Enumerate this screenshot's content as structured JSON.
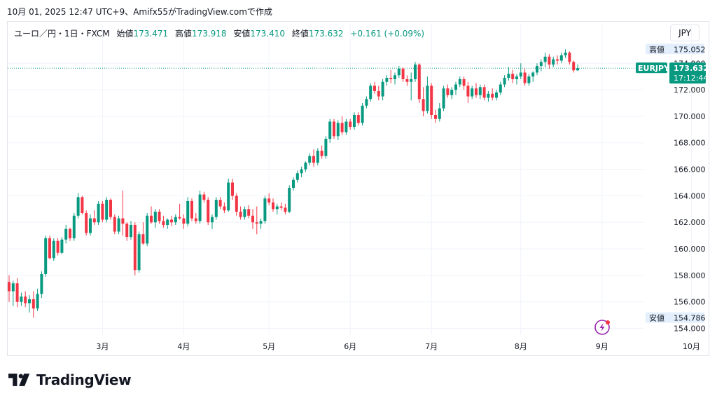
{
  "caption": "10月 01, 2025 12:47 UTC+9、Amifx55がTradingView.comで作成",
  "legend": {
    "symbol": "ユーロ／円・1日・FXCM",
    "open_label": "始値",
    "open_value": "173.471",
    "high_label": "高値",
    "high_value": "173.918",
    "low_label": "安値",
    "low_value": "173.410",
    "close_label": "終値",
    "close_value": "173.632",
    "change": "+0.161 (+0.09%)"
  },
  "currency_button": "JPY",
  "logo_text": "TradingView",
  "price_axis": {
    "ticks": [
      "174.000",
      "172.000",
      "170.000",
      "168.000",
      "166.000",
      "164.000",
      "162.000",
      "160.000",
      "158.000",
      "156.000",
      "154.000"
    ],
    "high_tag_label": "高値",
    "high_tag_value": "175.052",
    "low_tag_label": "安値",
    "low_tag_value": "154.786",
    "symbol_tag": "EURJPY",
    "last_price": "173.632",
    "countdown": "17:12:44"
  },
  "time_axis": {
    "ticks": [
      "3月",
      "4月",
      "5月",
      "6月",
      "7月",
      "8月",
      "9月",
      "10月"
    ]
  },
  "colors": {
    "up": "#089981",
    "down": "#f23645",
    "last_price_line": "#089981",
    "high_low_tag_bg": "#e3effd"
  },
  "chart_data": {
    "type": "candlestick",
    "symbol": "EURJPY",
    "timeframe": "1D",
    "ylim": [
      153.5,
      175.6
    ],
    "y_ticks": [
      154,
      156,
      158,
      160,
      162,
      164,
      166,
      168,
      170,
      172,
      174
    ],
    "x_ticks": [
      "3月",
      "4月",
      "5月",
      "6月",
      "7月",
      "8月",
      "9月",
      "10月"
    ],
    "x_tick_index": [
      23,
      43,
      64,
      84,
      104,
      126,
      146,
      168
    ],
    "high_marker": 175.052,
    "low_marker": 154.786,
    "last_price": 173.632,
    "grid": true,
    "candles": [
      [
        157.5,
        158.0,
        156.0,
        156.8
      ],
      [
        156.8,
        157.6,
        155.7,
        157.4
      ],
      [
        157.4,
        157.8,
        155.6,
        156.0
      ],
      [
        156.0,
        156.7,
        155.7,
        156.4
      ],
      [
        156.4,
        156.8,
        155.6,
        155.9
      ],
      [
        155.9,
        156.5,
        155.2,
        156.2
      ],
      [
        156.2,
        156.8,
        154.8,
        155.5
      ],
      [
        155.5,
        157.0,
        155.3,
        156.6
      ],
      [
        156.6,
        158.3,
        156.3,
        158.1
      ],
      [
        158.1,
        161.0,
        157.9,
        160.8
      ],
      [
        160.8,
        161.0,
        159.2,
        159.3
      ],
      [
        159.3,
        160.8,
        159.1,
        160.6
      ],
      [
        160.6,
        160.8,
        159.5,
        159.7
      ],
      [
        159.7,
        160.9,
        159.6,
        160.7
      ],
      [
        160.7,
        161.8,
        160.4,
        161.5
      ],
      [
        161.5,
        161.6,
        160.6,
        160.8
      ],
      [
        160.8,
        162.7,
        160.6,
        162.5
      ],
      [
        162.5,
        164.2,
        162.3,
        163.9
      ],
      [
        163.9,
        164.0,
        162.6,
        162.7
      ],
      [
        162.7,
        162.9,
        161.0,
        161.2
      ],
      [
        161.2,
        162.6,
        161.0,
        162.3
      ],
      [
        162.3,
        162.9,
        161.8,
        162.0
      ],
      [
        162.0,
        163.6,
        161.8,
        163.4
      ],
      [
        163.4,
        163.6,
        162.0,
        162.2
      ],
      [
        162.2,
        163.9,
        162.0,
        163.7
      ],
      [
        163.7,
        163.8,
        162.2,
        162.4
      ],
      [
        162.4,
        162.6,
        161.1,
        161.3
      ],
      [
        161.3,
        162.5,
        161.1,
        162.3
      ],
      [
        162.3,
        164.4,
        161.0,
        161.9
      ],
      [
        161.9,
        162.0,
        160.6,
        160.9
      ],
      [
        160.9,
        162.1,
        160.7,
        161.8
      ],
      [
        161.8,
        162.0,
        158.0,
        158.4
      ],
      [
        158.4,
        161.3,
        158.2,
        161.1
      ],
      [
        161.1,
        162.0,
        160.3,
        160.4
      ],
      [
        160.4,
        162.7,
        160.2,
        162.5
      ],
      [
        162.5,
        163.2,
        161.9,
        162.0
      ],
      [
        162.0,
        163.0,
        161.6,
        162.8
      ],
      [
        162.8,
        163.0,
        161.9,
        162.1
      ],
      [
        162.1,
        162.5,
        161.6,
        161.8
      ],
      [
        161.8,
        162.3,
        161.5,
        162.2
      ],
      [
        162.2,
        162.5,
        161.7,
        162.0
      ],
      [
        162.0,
        162.6,
        161.8,
        162.4
      ],
      [
        162.4,
        163.4,
        162.2,
        162.3
      ],
      [
        162.3,
        162.6,
        161.5,
        161.9
      ],
      [
        161.9,
        163.9,
        161.7,
        163.6
      ],
      [
        163.6,
        163.8,
        162.1,
        162.3
      ],
      [
        162.3,
        162.7,
        161.9,
        162.1
      ],
      [
        162.1,
        164.4,
        161.9,
        164.1
      ],
      [
        164.1,
        164.3,
        163.5,
        163.7
      ],
      [
        163.7,
        163.9,
        161.8,
        162.0
      ],
      [
        162.0,
        162.6,
        161.5,
        162.4
      ],
      [
        162.4,
        163.9,
        162.2,
        163.7
      ],
      [
        163.7,
        163.9,
        163.0,
        163.2
      ],
      [
        163.2,
        163.5,
        162.7,
        162.9
      ],
      [
        162.9,
        165.3,
        162.8,
        165.0
      ],
      [
        165.0,
        165.3,
        163.7,
        164.0
      ],
      [
        164.0,
        164.2,
        162.5,
        162.8
      ],
      [
        162.8,
        163.2,
        162.2,
        162.4
      ],
      [
        162.4,
        163.2,
        162.2,
        163.0
      ],
      [
        163.0,
        163.3,
        162.3,
        162.5
      ],
      [
        162.5,
        163.0,
        161.5,
        162.0
      ],
      [
        162.0,
        163.2,
        161.1,
        161.9
      ],
      [
        161.9,
        162.3,
        161.5,
        162.1
      ],
      [
        162.1,
        164.0,
        161.9,
        163.8
      ],
      [
        163.8,
        164.2,
        163.3,
        163.5
      ],
      [
        163.5,
        163.8,
        162.8,
        163.0
      ],
      [
        163.0,
        163.4,
        162.6,
        163.2
      ],
      [
        163.2,
        163.5,
        162.9,
        163.1
      ],
      [
        163.1,
        163.4,
        162.6,
        162.8
      ],
      [
        162.8,
        164.8,
        162.7,
        164.6
      ],
      [
        164.6,
        165.4,
        164.4,
        165.2
      ],
      [
        165.2,
        165.9,
        165.0,
        165.7
      ],
      [
        165.7,
        166.2,
        165.4,
        166.0
      ],
      [
        166.0,
        166.6,
        165.8,
        166.5
      ],
      [
        166.5,
        167.2,
        166.3,
        167.0
      ],
      [
        167.0,
        167.5,
        166.2,
        166.5
      ],
      [
        166.5,
        167.6,
        166.3,
        167.4
      ],
      [
        167.4,
        167.8,
        166.8,
        167.0
      ],
      [
        167.0,
        168.5,
        166.8,
        168.3
      ],
      [
        168.3,
        169.8,
        168.0,
        169.6
      ],
      [
        169.6,
        169.8,
        168.3,
        168.5
      ],
      [
        168.5,
        169.7,
        168.2,
        169.5
      ],
      [
        169.5,
        170.0,
        168.6,
        168.8
      ],
      [
        168.8,
        169.8,
        168.6,
        169.6
      ],
      [
        169.6,
        169.8,
        169.0,
        169.2
      ],
      [
        169.2,
        170.3,
        169.0,
        170.1
      ],
      [
        170.1,
        170.3,
        169.3,
        169.5
      ],
      [
        169.5,
        171.0,
        169.3,
        170.8
      ],
      [
        170.8,
        171.5,
        170.6,
        171.3
      ],
      [
        171.3,
        172.5,
        171.1,
        172.3
      ],
      [
        172.3,
        172.6,
        171.7,
        171.9
      ],
      [
        171.9,
        172.3,
        171.2,
        171.5
      ],
      [
        171.5,
        172.8,
        171.2,
        172.6
      ],
      [
        172.6,
        173.1,
        172.3,
        172.9
      ],
      [
        172.9,
        173.5,
        172.5,
        172.8
      ],
      [
        172.8,
        173.3,
        172.4,
        173.1
      ],
      [
        173.1,
        173.8,
        172.9,
        173.6
      ],
      [
        173.6,
        173.7,
        172.6,
        172.8
      ],
      [
        172.8,
        173.1,
        172.3,
        172.6
      ],
      [
        172.6,
        173.3,
        171.2,
        172.8
      ],
      [
        172.8,
        174.1,
        172.6,
        173.9
      ],
      [
        173.9,
        174.0,
        171.0,
        171.3
      ],
      [
        171.3,
        172.2,
        170.0,
        170.4
      ],
      [
        170.4,
        173.0,
        170.2,
        172.3
      ],
      [
        172.3,
        172.5,
        169.8,
        170.1
      ],
      [
        170.1,
        170.5,
        169.5,
        169.8
      ],
      [
        169.8,
        171.0,
        169.6,
        170.6
      ],
      [
        170.6,
        172.3,
        170.4,
        172.1
      ],
      [
        172.1,
        172.4,
        171.4,
        171.6
      ],
      [
        171.6,
        172.2,
        171.3,
        172.0
      ],
      [
        172.0,
        172.6,
        171.6,
        172.4
      ],
      [
        172.4,
        173.0,
        172.2,
        172.8
      ],
      [
        172.8,
        173.0,
        172.0,
        172.3
      ],
      [
        172.3,
        172.6,
        171.0,
        171.5
      ],
      [
        171.5,
        172.3,
        171.3,
        172.1
      ],
      [
        172.1,
        172.5,
        171.4,
        171.6
      ],
      [
        171.6,
        172.4,
        171.3,
        172.2
      ],
      [
        172.2,
        172.4,
        171.2,
        171.4
      ],
      [
        171.4,
        171.9,
        171.1,
        171.7
      ],
      [
        171.7,
        172.1,
        171.2,
        171.4
      ],
      [
        171.4,
        172.0,
        171.2,
        171.8
      ],
      [
        171.8,
        172.6,
        171.6,
        172.4
      ],
      [
        172.4,
        173.1,
        172.2,
        172.9
      ],
      [
        172.9,
        173.7,
        172.7,
        173.2
      ],
      [
        173.2,
        173.5,
        172.5,
        172.8
      ],
      [
        172.8,
        173.2,
        172.4,
        173.0
      ],
      [
        173.0,
        174.0,
        172.8,
        173.3
      ],
      [
        173.3,
        173.6,
        172.3,
        172.5
      ],
      [
        172.5,
        173.2,
        172.3,
        173.0
      ],
      [
        173.0,
        173.4,
        172.6,
        173.3
      ],
      [
        173.3,
        174.0,
        173.1,
        173.8
      ],
      [
        173.8,
        174.3,
        173.4,
        174.1
      ],
      [
        174.1,
        174.8,
        173.7,
        174.5
      ],
      [
        174.5,
        174.7,
        173.6,
        173.9
      ],
      [
        173.9,
        174.5,
        173.7,
        174.3
      ],
      [
        174.3,
        174.6,
        173.9,
        174.2
      ],
      [
        174.2,
        174.8,
        174.0,
        174.6
      ],
      [
        174.6,
        175.052,
        174.4,
        174.8
      ],
      [
        174.8,
        174.9,
        173.9,
        174.1
      ],
      [
        174.1,
        174.2,
        173.3,
        173.47
      ],
      [
        173.471,
        173.918,
        173.41,
        173.632
      ]
    ]
  }
}
